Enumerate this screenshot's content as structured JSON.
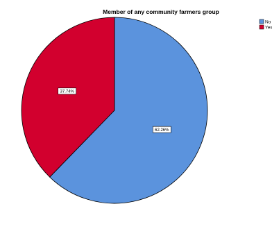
{
  "chart_data": {
    "type": "pie",
    "title": "Member of any community farmers group",
    "categories": [
      "No",
      "Yes"
    ],
    "values": [
      62.26,
      37.74
    ],
    "labels": [
      "62.26%",
      "37.74%"
    ],
    "colors": [
      "#5b93dd",
      "#d2002e"
    ],
    "start_angle_deg": 0,
    "direction": "clockwise",
    "legend": {
      "placement": "top-right",
      "items": [
        "No",
        "Yes"
      ]
    }
  }
}
